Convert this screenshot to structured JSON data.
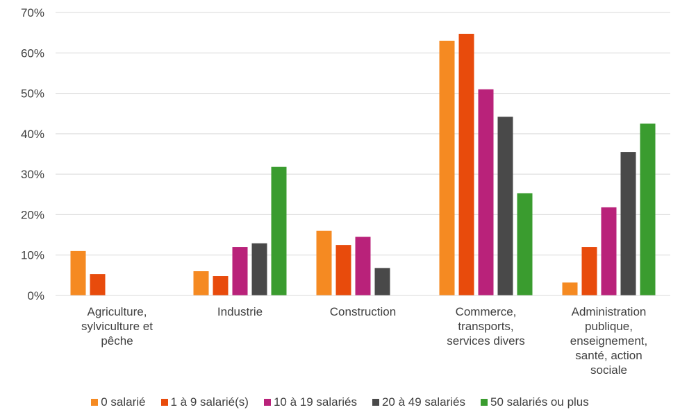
{
  "chart_data": {
    "type": "bar",
    "categories": [
      [
        "Agriculture,",
        "sylviculture et",
        "pêche"
      ],
      [
        "Industrie"
      ],
      [
        "Construction"
      ],
      [
        "Commerce,",
        "transports,",
        "services divers"
      ],
      [
        "Administration",
        "publique,",
        "enseignement,",
        "santé, action",
        "sociale"
      ]
    ],
    "series": [
      {
        "name": "0 salarié",
        "color": "#F58A22",
        "values": [
          11,
          6,
          16,
          63,
          3.2
        ]
      },
      {
        "name": "1 à 9 salarié(s)",
        "color": "#E84B0C",
        "values": [
          5.3,
          4.8,
          12.5,
          64.7,
          12
        ]
      },
      {
        "name": "10 à 19 salariés",
        "color": "#B9227A",
        "values": [
          0,
          12,
          14.5,
          51,
          21.8
        ]
      },
      {
        "name": "20 à 49 salariés",
        "color": "#494949",
        "values": [
          0,
          12.9,
          6.8,
          44.2,
          35.5
        ]
      },
      {
        "name": "50 salariés ou plus",
        "color": "#3A9C2F",
        "values": [
          0,
          31.8,
          0,
          25.3,
          42.5
        ]
      }
    ],
    "ylim": [
      0,
      70
    ],
    "yticks": [
      0,
      10,
      20,
      30,
      40,
      50,
      60,
      70
    ],
    "ytick_labels": [
      "0%",
      "10%",
      "20%",
      "30%",
      "40%",
      "50%",
      "60%",
      "70%"
    ],
    "grid": true,
    "legend_position": "bottom"
  }
}
